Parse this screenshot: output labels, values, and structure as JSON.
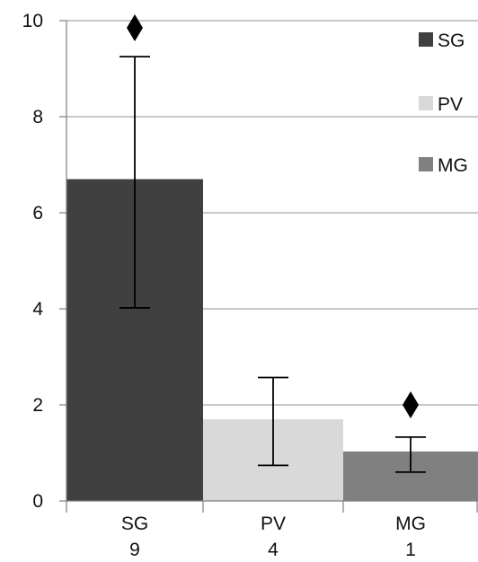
{
  "chart_data": {
    "type": "bar",
    "title": "",
    "xlabel": "",
    "ylabel": "",
    "ylim": [
      0,
      10
    ],
    "yticks": [
      0,
      2,
      4,
      6,
      8,
      10
    ],
    "y_tick_labels": [
      "0",
      "2",
      "4",
      "6",
      "8",
      "10"
    ],
    "grid": true,
    "legend_position": "right",
    "categories": [
      "SG",
      "PV",
      "MG"
    ],
    "category_sublabels": [
      "9",
      "4",
      "1"
    ],
    "values": [
      6.7,
      1.7,
      1.03
    ],
    "error_low": [
      4.02,
      0.74,
      0.6
    ],
    "error_high": [
      9.25,
      2.57,
      1.33
    ],
    "markers": [
      {
        "category": "SG",
        "symbol": "diamond",
        "y": 9.85
      },
      {
        "category": "PV",
        "symbol": "",
        "y": null
      },
      {
        "category": "MG",
        "symbol": "diamond",
        "y": 2.0
      }
    ],
    "colors": [
      "#404040",
      "#d9d9d9",
      "#808080"
    ],
    "legend": [
      {
        "label": "SG",
        "color": "#404040"
      },
      {
        "label": "PV",
        "color": "#d9d9d9"
      },
      {
        "label": "MG",
        "color": "#808080"
      }
    ]
  }
}
